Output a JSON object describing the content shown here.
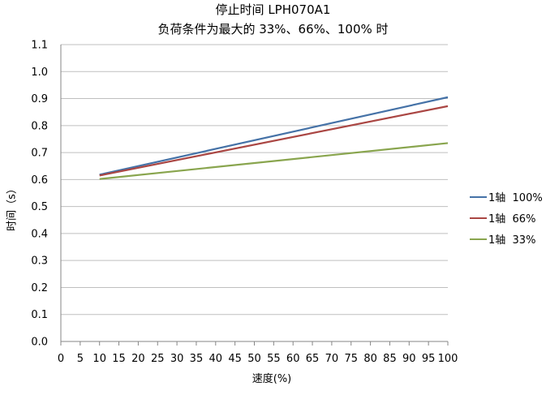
{
  "chart_data": {
    "type": "line",
    "title": [
      "停止时间 LPH070A1",
      "负荷条件为最大的 33%、66%、100% 时"
    ],
    "xlabel": "速度(%)",
    "ylabel": "时间（s）",
    "xlim": [
      0,
      100
    ],
    "ylim": [
      0,
      1.1
    ],
    "x_ticks": [
      "0",
      "5",
      "10",
      "15",
      "20",
      "25",
      "30",
      "35",
      "40",
      "45",
      "50",
      "55",
      "60",
      "65",
      "70",
      "75",
      "80",
      "85",
      "90",
      "95",
      "100"
    ],
    "y_ticks": [
      "0.0",
      "0.1",
      "0.2",
      "0.3",
      "0.4",
      "0.5",
      "0.6",
      "0.7",
      "0.8",
      "0.9",
      "1.0",
      "1.1"
    ],
    "grid": "horizontal",
    "legend_position": "right",
    "series": [
      {
        "name": "1轴  100%",
        "color": "#4572a7",
        "x": [
          10,
          100
        ],
        "y": [
          0.618,
          0.905
        ]
      },
      {
        "name": "1轴  66%",
        "color": "#aa4643",
        "x": [
          10,
          100
        ],
        "y": [
          0.615,
          0.872
        ]
      },
      {
        "name": "1轴  33%",
        "color": "#89a54e",
        "x": [
          10,
          100
        ],
        "y": [
          0.602,
          0.735
        ]
      }
    ]
  }
}
